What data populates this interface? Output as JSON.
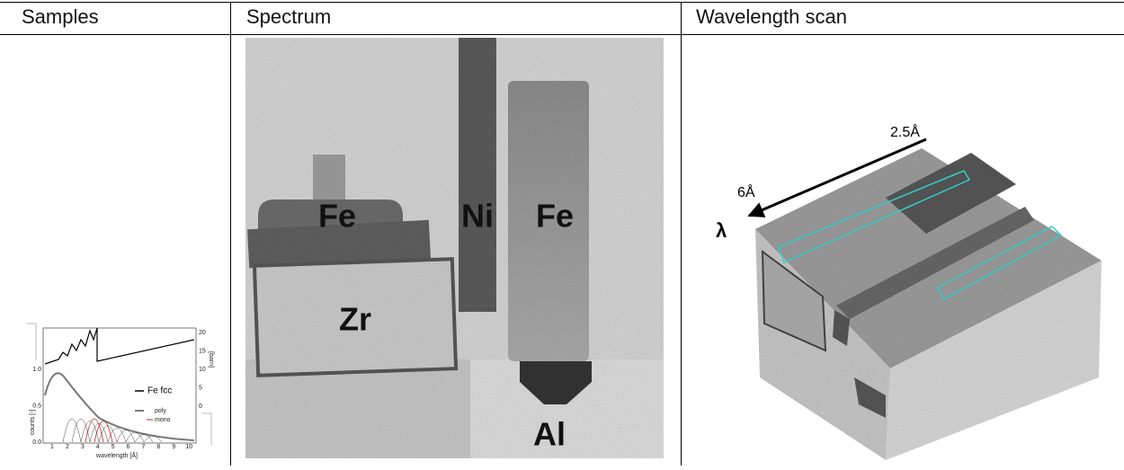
{
  "table": {
    "headers": [
      "Samples",
      "Spectrum",
      "Wavelength scan"
    ],
    "samples": {
      "legend": [
        "Fe fcc",
        "poly",
        "mono"
      ],
      "x_label": "wavelength [Å]",
      "y_label": "counts [-]",
      "y2_label": "[barn]",
      "xticks": [
        "1",
        "2",
        "3",
        "4",
        "5",
        "6",
        "7",
        "8",
        "9",
        "10"
      ],
      "yticks": [
        "0.0",
        "0.5",
        "1.0"
      ],
      "y2ticks": [
        "0",
        "5",
        "10",
        "15",
        "20"
      ]
    },
    "spectrum": {
      "labels": [
        "Fe",
        "Ni",
        "Fe",
        "Zr",
        "Al"
      ]
    },
    "wavelength_scan": {
      "labels": [
        "2.5Å",
        "6Å",
        "λ"
      ]
    }
  }
}
